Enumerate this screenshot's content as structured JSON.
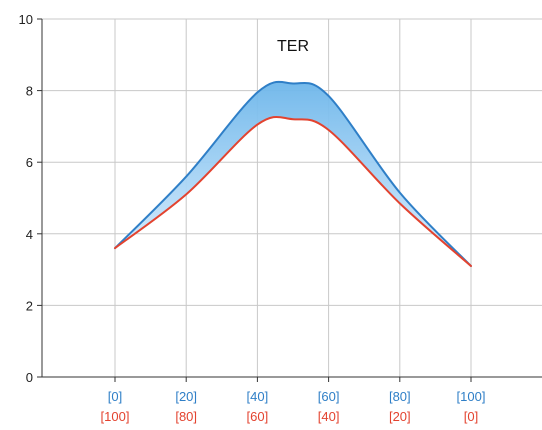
{
  "chart_data": {
    "type": "area",
    "title": "",
    "xlabel": "",
    "ylabel": "",
    "ylim": [
      0,
      10
    ],
    "yticks": [
      0,
      2,
      4,
      6,
      8,
      10
    ],
    "grid": true,
    "legend": "none",
    "annotations": [
      {
        "text": "TER",
        "x": 50,
        "y": 9.1
      }
    ],
    "x": [
      0,
      20,
      40,
      60,
      80,
      100
    ],
    "x_tick_labels": [
      "[0]",
      "[20]",
      "[40]",
      "[60]",
      "[80]",
      "[100]"
    ],
    "x_tick_labels_secondary": [
      "[100]",
      "[80]",
      "[60]",
      "[40]",
      "[20]",
      "[0]"
    ],
    "series": [
      {
        "color": "#2f7fc7",
        "points": [
          [
            0,
            3.6
          ],
          [
            20,
            5.6
          ],
          [
            40,
            7.95
          ],
          [
            50,
            8.2
          ],
          [
            60,
            7.85
          ],
          [
            80,
            5.15
          ],
          [
            100,
            3.1
          ]
        ]
      },
      {
        "color": "#e3432f",
        "points": [
          [
            0,
            3.6
          ],
          [
            20,
            5.1
          ],
          [
            40,
            7.05
          ],
          [
            50,
            7.2
          ],
          [
            60,
            6.9
          ],
          [
            80,
            4.85
          ],
          [
            100,
            3.1
          ]
        ]
      }
    ],
    "fill_between": {
      "upper_series": 0,
      "lower_series": 1,
      "color_top": "#6db6ea",
      "color_bottom": "#dcefff"
    },
    "colors": {
      "axis": "#333333",
      "grid": "#c8c8c8",
      "tick_text": "#222222",
      "primary_x_tick_text": "#2f7fc7",
      "secondary_x_tick_text": "#e3432f"
    }
  }
}
